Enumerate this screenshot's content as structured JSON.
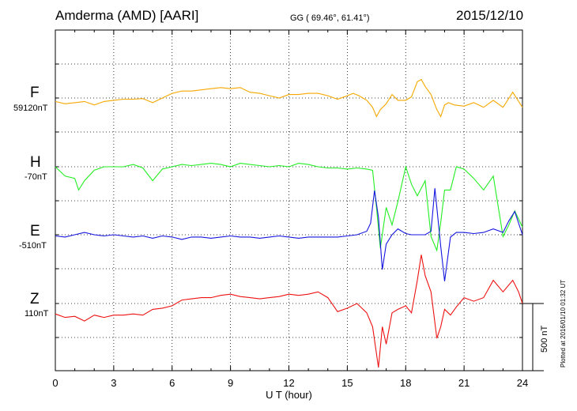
{
  "header": {
    "station": "Amderma (AMD)  [AARI]",
    "coords": "GG ( 69.46°,  61.41°)",
    "date": "2015/12/10"
  },
  "plotted": "Plotted at 2016/01/10 01:32 UT",
  "colors": {
    "F": "#f5a800",
    "H": "#22ee22",
    "E": "#1515e0",
    "Z": "#ee1111"
  },
  "chart_data": {
    "type": "line",
    "xlabel": "U T (hour)",
    "xlim": [
      0,
      24
    ],
    "xticks": [
      "0",
      "3",
      "6",
      "9",
      "12",
      "15",
      "18",
      "21",
      "24"
    ],
    "scale_bar": "500 nT",
    "components": [
      {
        "name": "F",
        "baseline": "59120nT",
        "x": [
          0,
          0.5,
          1,
          1.5,
          2,
          2.5,
          3,
          3.5,
          4,
          4.5,
          5,
          5.5,
          6,
          6.5,
          7,
          7.5,
          8,
          8.5,
          9,
          9.5,
          10,
          10.5,
          11,
          11.5,
          12,
          12.5,
          13,
          13.5,
          14,
          14.5,
          15,
          15.3,
          15.6,
          16,
          16.3,
          16.5,
          16.7,
          17,
          17.3,
          17.6,
          18,
          18.3,
          18.6,
          18.8,
          19,
          19.3,
          19.6,
          19.8,
          20,
          20.2,
          20.5,
          21,
          21.5,
          22,
          22.5,
          23,
          23.5,
          24
        ],
        "values": [
          -30,
          -50,
          -40,
          -30,
          -60,
          -30,
          -20,
          -10,
          -10,
          -5,
          -40,
          0,
          40,
          60,
          60,
          70,
          80,
          90,
          80,
          90,
          50,
          40,
          20,
          0,
          30,
          30,
          40,
          40,
          20,
          -10,
          20,
          40,
          20,
          -20,
          -80,
          -160,
          -100,
          -50,
          30,
          -20,
          -20,
          10,
          140,
          160,
          100,
          30,
          -100,
          -160,
          -60,
          -40,
          -60,
          -70,
          -40,
          -80,
          -20,
          -80,
          50,
          -80
        ]
      },
      {
        "name": "H",
        "baseline": "-70nT",
        "x": [
          0,
          0.5,
          1,
          1.2,
          1.5,
          2,
          2.5,
          3,
          3.5,
          4,
          4.5,
          5,
          5.5,
          6,
          6.5,
          7,
          7.5,
          8,
          8.5,
          9,
          9.5,
          10,
          10.5,
          11,
          11.5,
          12,
          12.5,
          13,
          13.5,
          14,
          14.5,
          15,
          15.5,
          16,
          16.3,
          16.5,
          16.7,
          17,
          17.3,
          17.6,
          18,
          18.3,
          18.6,
          19,
          19.3,
          19.6,
          19.8,
          20,
          20.3,
          20.6,
          21,
          21.5,
          22,
          22.5,
          23,
          23.3,
          23.6,
          24
        ],
        "values": [
          0,
          -80,
          -100,
          -200,
          -120,
          -30,
          0,
          0,
          0,
          20,
          -10,
          -120,
          -20,
          0,
          20,
          10,
          20,
          30,
          20,
          0,
          30,
          20,
          10,
          0,
          10,
          0,
          30,
          20,
          0,
          -10,
          -10,
          -20,
          -10,
          -20,
          -30,
          -350,
          -700,
          -350,
          -500,
          -300,
          0,
          -150,
          -250,
          -120,
          -600,
          -720,
          -480,
          -200,
          -200,
          0,
          -20,
          -100,
          -200,
          -80,
          -600,
          -500,
          -380,
          -520
        ]
      },
      {
        "name": "E",
        "baseline": "-510nT",
        "x": [
          0,
          0.5,
          1,
          1.5,
          2,
          2.5,
          3,
          3.5,
          4,
          4.5,
          5,
          5.5,
          6,
          6.5,
          7,
          7.5,
          8,
          8.5,
          9,
          9.5,
          10,
          10.5,
          11,
          11.5,
          12,
          12.5,
          13,
          13.5,
          14,
          14.5,
          15,
          15.5,
          16,
          16.2,
          16.4,
          16.6,
          16.8,
          17,
          17.3,
          17.6,
          18,
          18.3,
          18.6,
          19,
          19.3,
          19.5,
          19.8,
          20,
          20.3,
          20.6,
          21,
          21.5,
          22,
          22.5,
          23,
          23.3,
          23.6,
          24
        ],
        "values": [
          -10,
          -20,
          0,
          20,
          0,
          -10,
          0,
          -10,
          -20,
          -10,
          -30,
          -10,
          -20,
          -40,
          -20,
          -20,
          -30,
          -20,
          -10,
          -20,
          -20,
          -30,
          -20,
          -10,
          -20,
          -30,
          -20,
          -20,
          -20,
          -20,
          -10,
          0,
          30,
          100,
          380,
          150,
          -300,
          -80,
          0,
          50,
          10,
          0,
          0,
          0,
          30,
          400,
          -100,
          -400,
          -20,
          20,
          20,
          10,
          20,
          50,
          20,
          120,
          200,
          0
        ]
      },
      {
        "name": "Z",
        "baseline": "110nT",
        "x": [
          0,
          0.5,
          1,
          1.5,
          2,
          2.5,
          3,
          3.5,
          4,
          4.5,
          5,
          5.5,
          6,
          6.5,
          7,
          7.5,
          8,
          8.5,
          9,
          9.5,
          10,
          10.5,
          11,
          11.5,
          12,
          12.5,
          13,
          13.5,
          14,
          14.5,
          15,
          15.5,
          16,
          16.3,
          16.6,
          16.8,
          17,
          17.3,
          17.6,
          18,
          18.3,
          18.6,
          18.8,
          19,
          19.3,
          19.6,
          19.8,
          20,
          20.3,
          20.6,
          21,
          21.5,
          22,
          22.5,
          23,
          23.5,
          23.8,
          24
        ],
        "values": [
          -90,
          -120,
          -110,
          -150,
          -100,
          -120,
          -100,
          -100,
          -90,
          -100,
          -50,
          -40,
          -20,
          30,
          40,
          50,
          50,
          70,
          80,
          60,
          50,
          40,
          50,
          60,
          80,
          70,
          80,
          100,
          50,
          -70,
          -40,
          0,
          -80,
          -200,
          -550,
          -200,
          -350,
          -80,
          -50,
          -20,
          -80,
          200,
          420,
          240,
          100,
          -300,
          -200,
          -50,
          -100,
          -30,
          50,
          20,
          50,
          200,
          100,
          200,
          100,
          0
        ]
      }
    ]
  }
}
